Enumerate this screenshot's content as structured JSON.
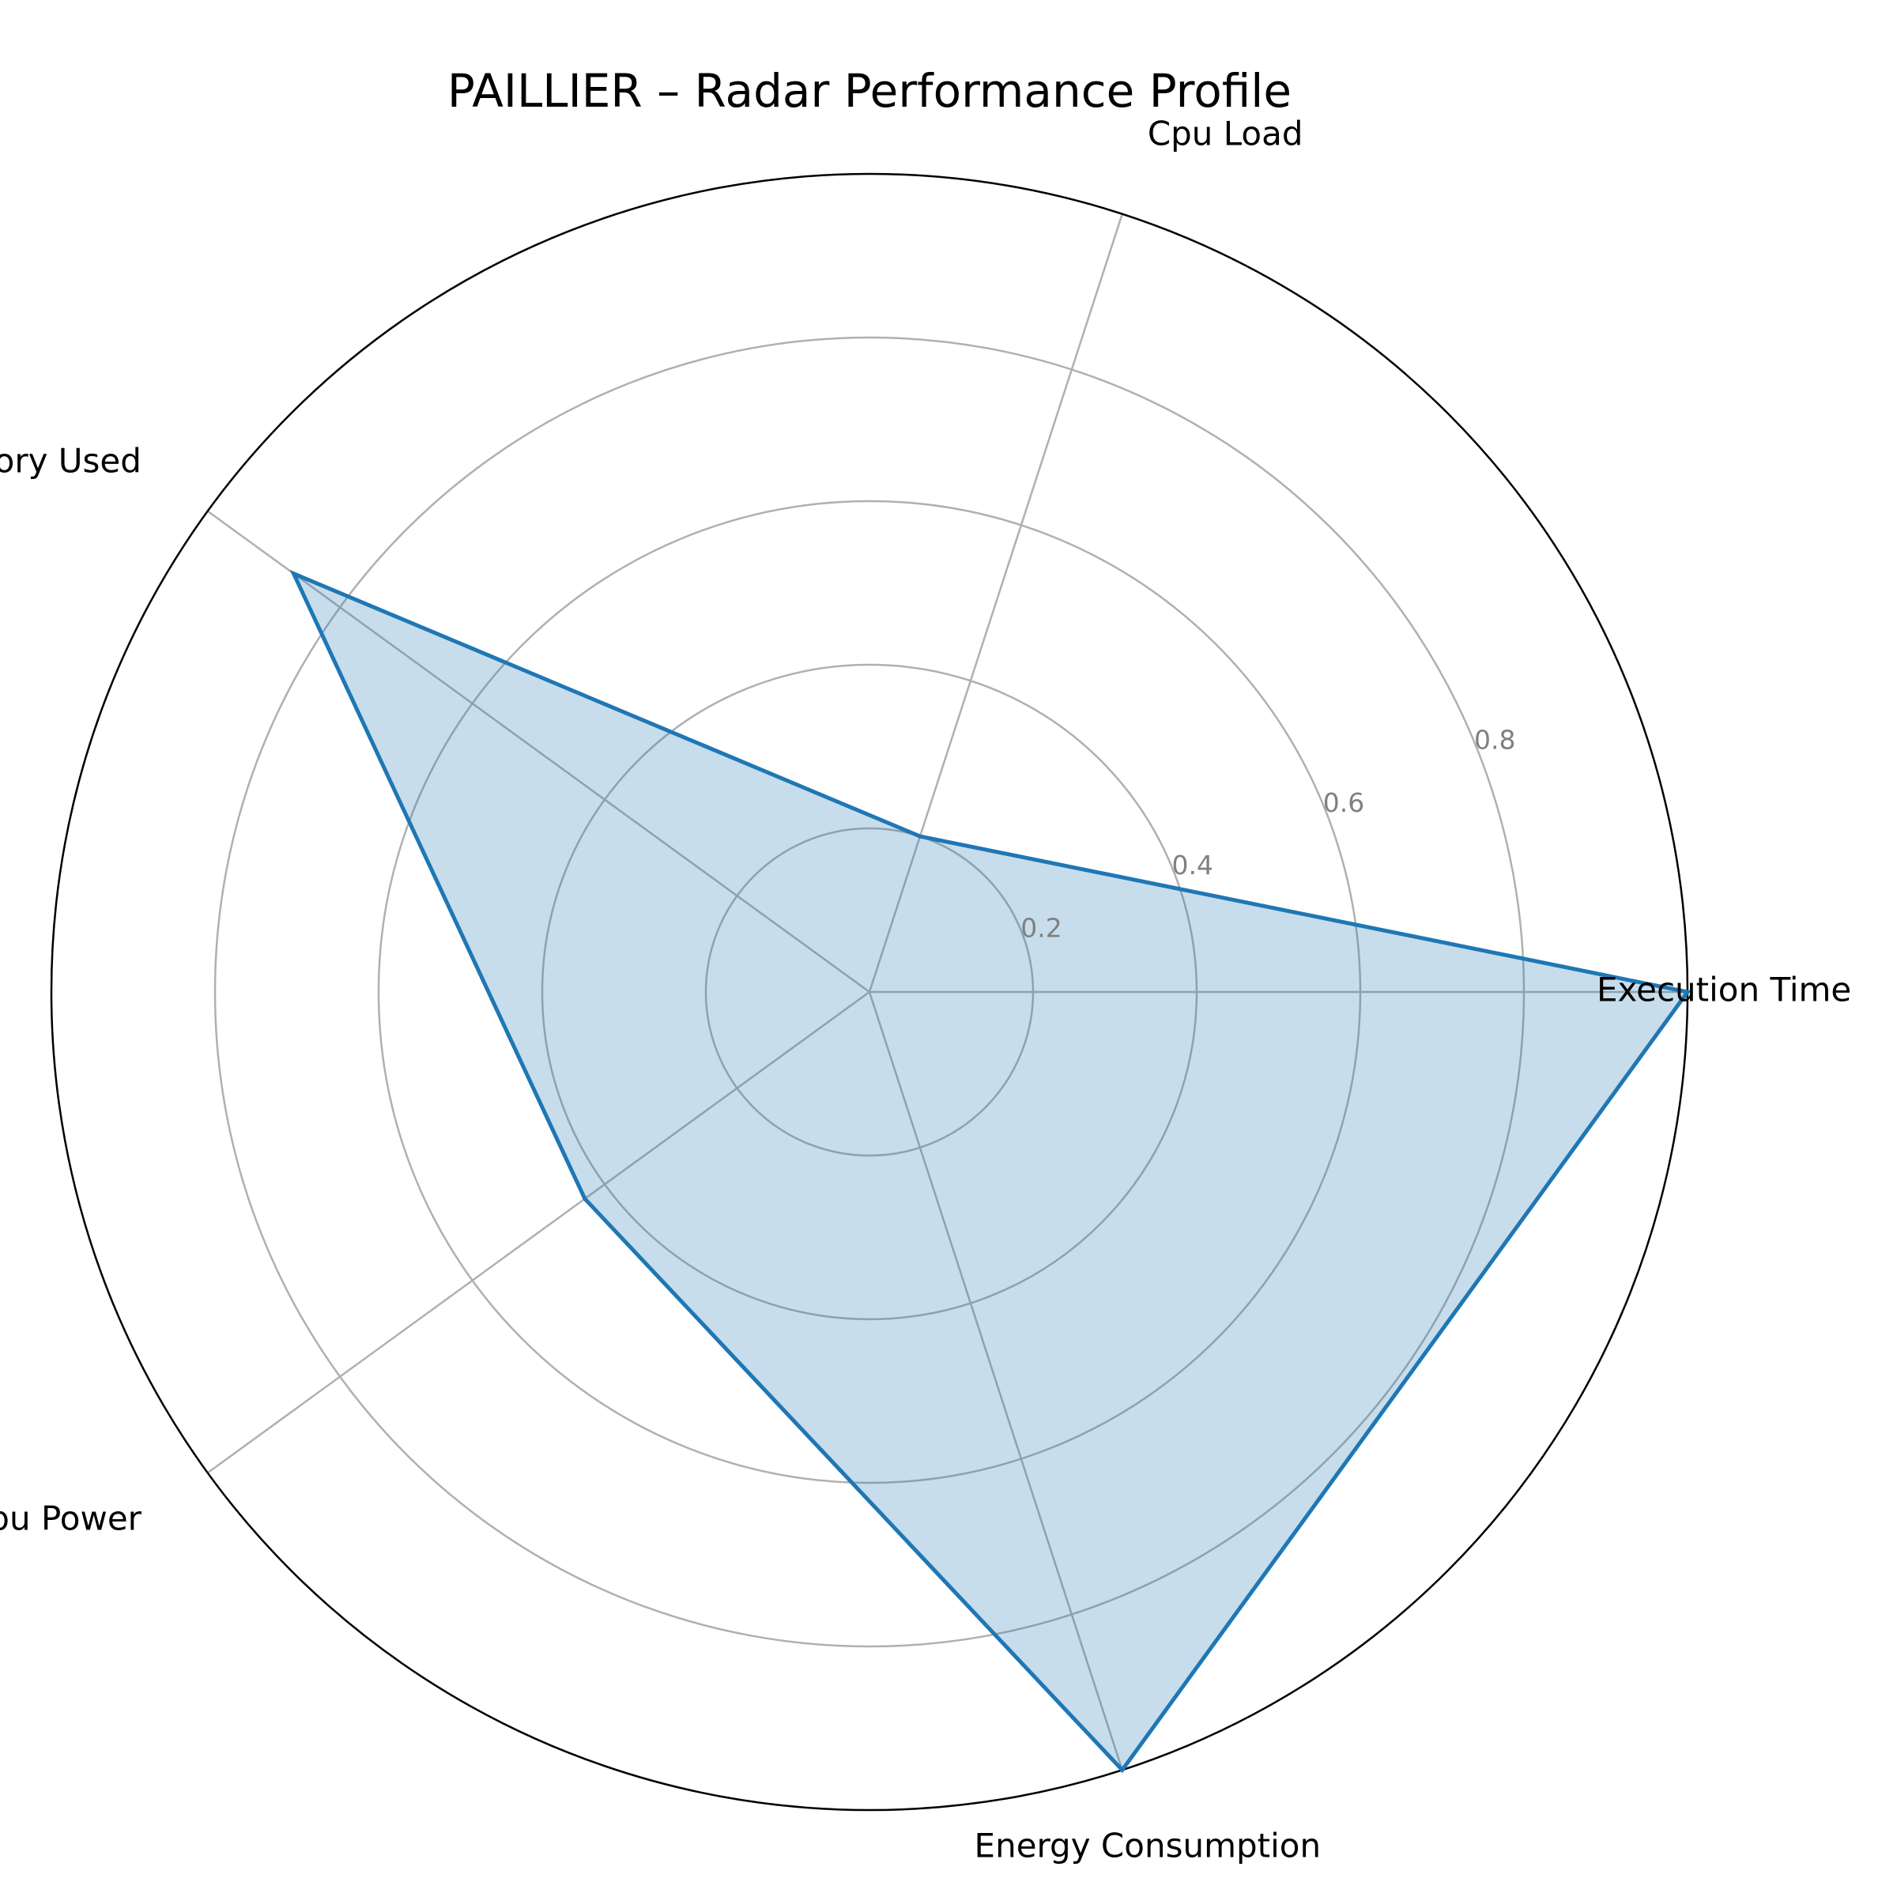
{
  "chart_data": {
    "type": "radar",
    "title": "PAILLIER – Radar Performance Profile",
    "categories": [
      "Execution Time",
      "Cpu Load",
      "Memory Used",
      "Cpu Power",
      "Energy Consumption"
    ],
    "series": [
      {
        "values": [
          1.0,
          0.2,
          0.87,
          0.43,
          1.0
        ]
      }
    ],
    "rlim": [
      0,
      1.0
    ],
    "rticks": [
      0.2,
      0.4,
      0.6,
      0.8
    ],
    "rtick_labels": [
      "0.2",
      "0.4",
      "0.6",
      "0.8"
    ],
    "grid": true,
    "colors": {
      "line": "#1f77b4",
      "fill": "#1f77b4",
      "grid": "#b0b0b0",
      "outer_ring": "#000000",
      "tick_label": "#808080"
    }
  }
}
